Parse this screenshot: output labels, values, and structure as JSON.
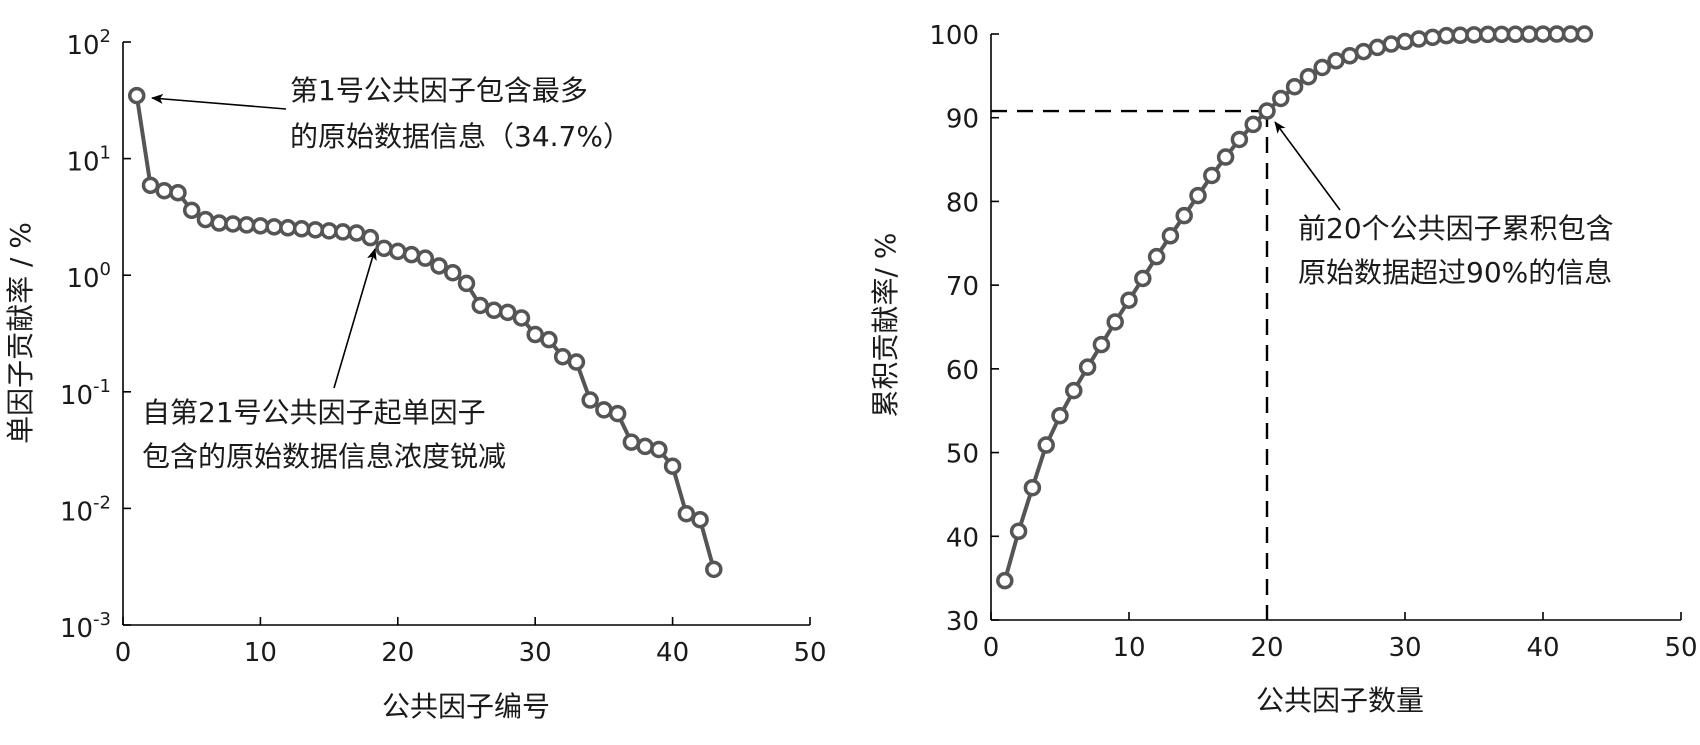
{
  "chart_data": [
    {
      "type": "scatter",
      "log_y": true,
      "xlabel": "公共因子编号",
      "ylabel": "单因子贡献率 / %",
      "xlim": [
        0,
        50
      ],
      "ylim": [
        0.001,
        100
      ],
      "x_ticks": [
        0,
        10,
        20,
        30,
        40,
        50
      ],
      "y_ticks": [
        {
          "base": "10",
          "exp": "-3",
          "value": 0.001
        },
        {
          "base": "10",
          "exp": "-2",
          "value": 0.01
        },
        {
          "base": "10",
          "exp": "-1",
          "value": 0.1
        },
        {
          "base": "10",
          "exp": "0",
          "value": 1
        },
        {
          "base": "10",
          "exp": "1",
          "value": 10
        },
        {
          "base": "10",
          "exp": "2",
          "value": 100
        }
      ],
      "series": [
        {
          "x": [
            1,
            2,
            3,
            4,
            5,
            6,
            7,
            8,
            9,
            10,
            11,
            12,
            13,
            14,
            15,
            16,
            17,
            18,
            19,
            20,
            21,
            22,
            23,
            24,
            25,
            26,
            27,
            28,
            29,
            30,
            31,
            32,
            33,
            34,
            35,
            36,
            37,
            38,
            39,
            40,
            41,
            42,
            43
          ],
          "values": [
            34.7,
            5.9,
            5.3,
            5.1,
            3.6,
            3.0,
            2.8,
            2.75,
            2.7,
            2.65,
            2.6,
            2.55,
            2.5,
            2.45,
            2.4,
            2.35,
            2.3,
            2.1,
            1.7,
            1.6,
            1.5,
            1.4,
            1.2,
            1.05,
            0.85,
            0.55,
            0.5,
            0.48,
            0.43,
            0.31,
            0.28,
            0.2,
            0.18,
            0.085,
            0.07,
            0.065,
            0.037,
            0.034,
            0.032,
            0.023,
            0.009,
            0.008,
            0.003
          ]
        }
      ],
      "annotations": [
        {
          "lines": [
            "第1号公共因子包含最多",
            "的原始数据信息（34.7%）"
          ]
        },
        {
          "lines": [
            "自第21号公共因子起单因子",
            "包含的原始数据信息浓度锐减"
          ]
        }
      ]
    },
    {
      "type": "line",
      "xlabel": "公共因子数量",
      "ylabel": "累积贡献率/ %",
      "xlim": [
        0,
        50
      ],
      "ylim": [
        30,
        100
      ],
      "x_ticks": [
        0,
        10,
        20,
        30,
        40,
        50
      ],
      "y_ticks": [
        30,
        40,
        50,
        60,
        70,
        80,
        90,
        100
      ],
      "series": [
        {
          "x": [
            1,
            2,
            3,
            4,
            5,
            6,
            7,
            8,
            9,
            10,
            11,
            12,
            13,
            14,
            15,
            16,
            17,
            18,
            19,
            20,
            21,
            22,
            23,
            24,
            25,
            26,
            27,
            28,
            29,
            30,
            31,
            32,
            33,
            34,
            35,
            36,
            37,
            38,
            39,
            40,
            41,
            42,
            43
          ],
          "values": [
            34.7,
            40.6,
            45.8,
            50.9,
            54.4,
            57.4,
            60.2,
            62.9,
            65.6,
            68.2,
            70.8,
            73.4,
            75.9,
            78.3,
            80.7,
            83.1,
            85.3,
            87.4,
            89.2,
            90.8,
            92.3,
            93.7,
            94.9,
            96.0,
            96.8,
            97.4,
            97.9,
            98.4,
            98.8,
            99.1,
            99.4,
            99.6,
            99.8,
            99.85,
            99.9,
            99.95,
            99.96,
            99.97,
            99.98,
            99.99,
            99.995,
            99.998,
            100
          ]
        }
      ],
      "reference": {
        "x": 20,
        "y": 90.8
      },
      "annotations": [
        {
          "lines": [
            "前20个公共因子累积包含",
            "原始数据超过90%的信息"
          ]
        }
      ]
    }
  ]
}
